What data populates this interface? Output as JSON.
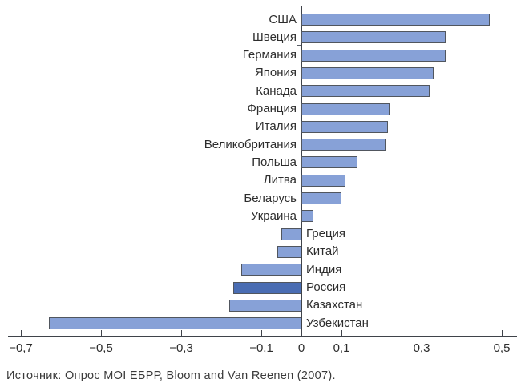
{
  "chart_data": {
    "type": "bar",
    "orientation": "horizontal",
    "title": "",
    "xlabel": "",
    "ylabel": "",
    "grid": false,
    "legend": false,
    "categories": [
      "США",
      "Швеция",
      "Германия",
      "Япония",
      "Канада",
      "Франция",
      "Италия",
      "Великобритания",
      "Польша",
      "Литва",
      "Беларусь",
      "Украина",
      "Греция",
      "Китай",
      "Индия",
      "Россия",
      "Казахстан",
      "Узбекистан"
    ],
    "values": [
      0.47,
      0.36,
      0.36,
      0.33,
      0.32,
      0.22,
      0.215,
      0.21,
      0.14,
      0.11,
      0.1,
      0.03,
      -0.05,
      -0.06,
      -0.15,
      -0.17,
      -0.18,
      -0.63
    ],
    "highlighted_category": "Россия",
    "highlight_index": 15,
    "xlim": [
      -0.7,
      0.55
    ],
    "x_ticks": [
      -0.7,
      -0.5,
      -0.3,
      -0.1,
      0.1,
      0.3,
      0.5
    ],
    "x_tick_labels": [
      "−0,7",
      "−0,5",
      "−0,3",
      "−0,1",
      "0,1",
      "0,3",
      "0,5"
    ],
    "zero_label": "0",
    "bar_color": "#87a1d7",
    "highlight_color": "#4a6db3",
    "bar_border_color": "#51565e",
    "axis_color": "#3f434a"
  },
  "source_note": "Источник: Опрос MOI ЕБРР, Bloom and Van Reenen (2007)."
}
